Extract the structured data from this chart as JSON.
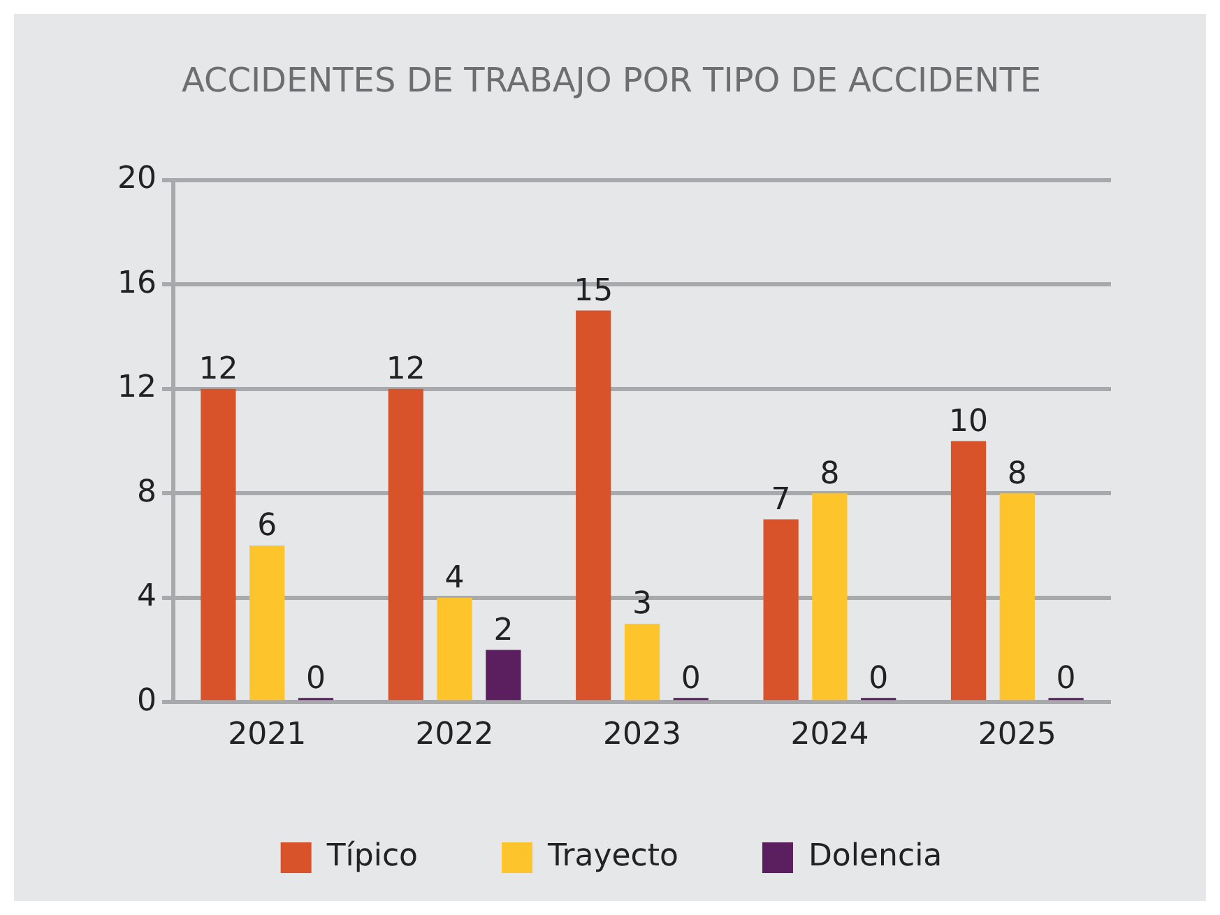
{
  "chart_data": {
    "type": "bar",
    "title": "ACCIDENTES DE TRABAJO POR TIPO DE ACCIDENTE",
    "categories": [
      "2021",
      "2022",
      "2023",
      "2024",
      "2025"
    ],
    "series": [
      {
        "name": "Típico",
        "color": "#d9532a",
        "values": [
          12,
          12,
          15,
          7,
          10
        ]
      },
      {
        "name": "Trayecto",
        "color": "#fdc52b",
        "values": [
          6,
          4,
          3,
          8,
          8
        ]
      },
      {
        "name": "Dolencia",
        "color": "#5b1f5f",
        "values": [
          0,
          2,
          0,
          0,
          0
        ]
      }
    ],
    "ylim": [
      0,
      20
    ],
    "yticks": [
      0,
      4,
      8,
      12,
      16,
      20
    ],
    "grid": "y",
    "legend": "bottom",
    "data_labels": true
  }
}
